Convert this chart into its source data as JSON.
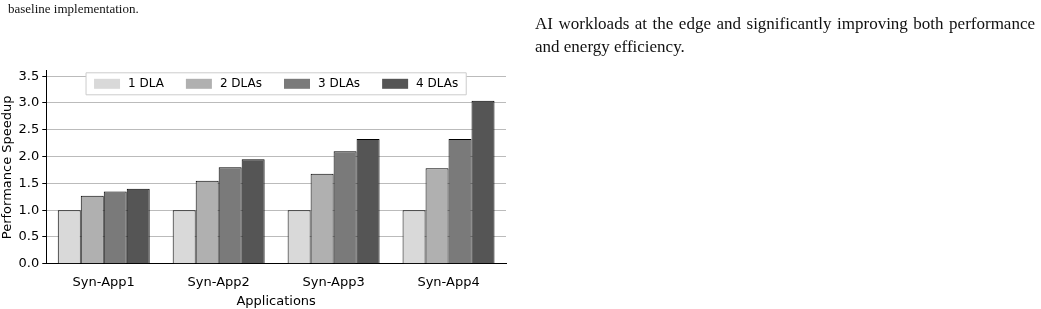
{
  "chart_data": {
    "type": "bar",
    "xlabel": "Applications",
    "ylabel": "Performance Speedup",
    "categories": [
      "Syn-App1",
      "Syn-App2",
      "Syn-App3",
      "Syn-App4"
    ],
    "series": [
      {
        "name": "1 DLA",
        "color": "#d9d9d9",
        "values": [
          1.0,
          1.0,
          1.0,
          1.0
        ]
      },
      {
        "name": "2 DLAs",
        "color": "#b0b0b0",
        "values": [
          1.27,
          1.55,
          1.68,
          1.78
        ]
      },
      {
        "name": "3 DLAs",
        "color": "#7a7a7a",
        "values": [
          1.35,
          1.8,
          2.1,
          2.33
        ]
      },
      {
        "name": "4 DLAs",
        "color": "#555555",
        "values": [
          1.4,
          1.95,
          2.33,
          3.04
        ]
      }
    ],
    "ylim": [
      0,
      3.6
    ],
    "yticks": [
      {
        "value": 0,
        "label": "0.0"
      },
      0.5,
      {
        "value": 1,
        "label": "1.0"
      },
      1.5,
      {
        "value": 2,
        "label": "2.0"
      },
      2.5,
      {
        "value": 3,
        "label": "3.0"
      },
      3.5
    ],
    "grid": "y",
    "legend": "top",
    "annotations": [
      "baseline implementation.",
      "AI workloads at the edge and significantly improving both performance and energy efficiency."
    ]
  }
}
